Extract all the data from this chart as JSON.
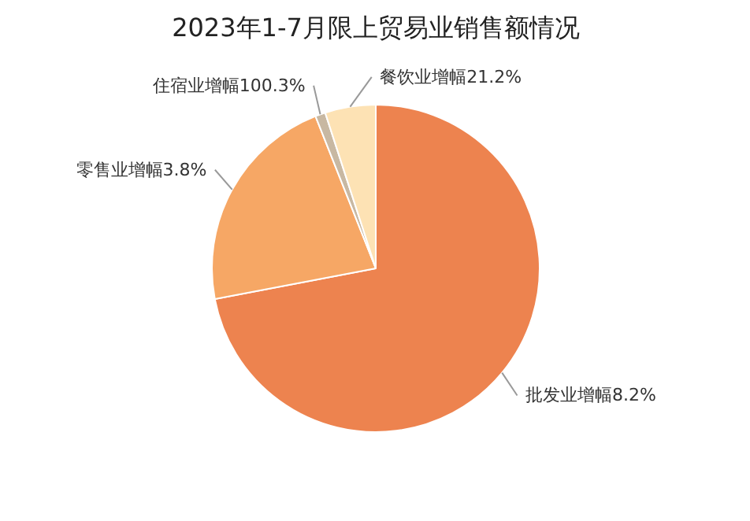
{
  "chart_data": {
    "type": "pie",
    "title": "2023年1-7月限上贸易业销售额情况",
    "categories": [
      "批发业增幅8.2%",
      "零售业增幅3.8%",
      "住宿业增幅100.3%",
      "餐饮业增幅21.2%"
    ],
    "values": [
      72,
      22,
      1,
      5
    ],
    "colors": [
      "#ed834f",
      "#f6a765",
      "#c8b8a2",
      "#fde2b4"
    ]
  }
}
